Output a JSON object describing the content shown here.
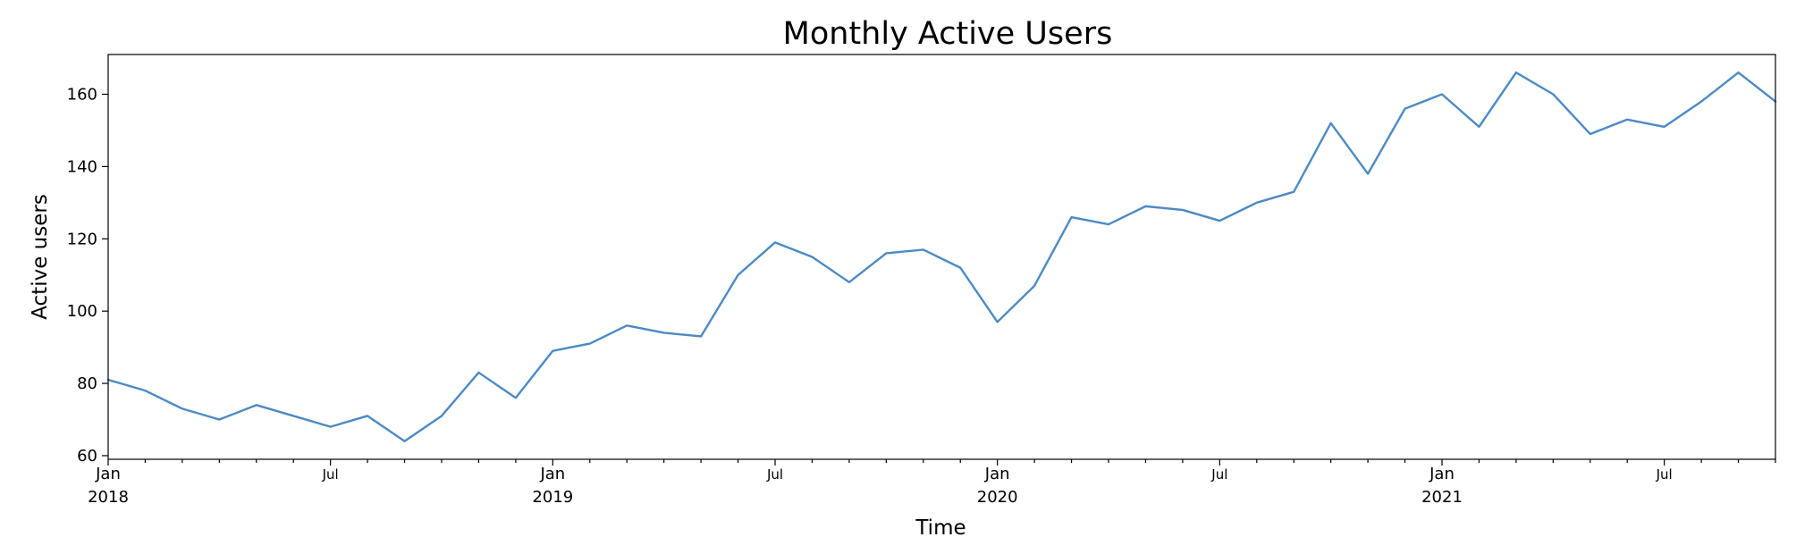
{
  "chart_data": {
    "type": "line",
    "title": "Monthly Active Users",
    "xlabel": "Time",
    "ylabel": "Active users",
    "ylim": [
      59,
      171
    ],
    "grid": false,
    "y_ticks": [
      60,
      80,
      100,
      120,
      140,
      160
    ],
    "x_major_ticks": [
      {
        "date": "2018-01",
        "label": "Jan",
        "year": "2018"
      },
      {
        "date": "2018-07",
        "label": "Jul",
        "year": ""
      },
      {
        "date": "2019-01",
        "label": "Jan",
        "year": "2019"
      },
      {
        "date": "2019-07",
        "label": "Jul",
        "year": ""
      },
      {
        "date": "2020-01",
        "label": "Jan",
        "year": "2020"
      },
      {
        "date": "2020-07",
        "label": "Jul",
        "year": ""
      },
      {
        "date": "2021-01",
        "label": "Jan",
        "year": "2021"
      },
      {
        "date": "2021-07",
        "label": "Jul",
        "year": ""
      }
    ],
    "series": [
      {
        "color": "#4c8ac4",
        "x": [
          "2018-01",
          "2018-02",
          "2018-03",
          "2018-04",
          "2018-05",
          "2018-06",
          "2018-07",
          "2018-08",
          "2018-09",
          "2018-10",
          "2018-11",
          "2018-12",
          "2019-01",
          "2019-02",
          "2019-03",
          "2019-04",
          "2019-05",
          "2019-06",
          "2019-07",
          "2019-08",
          "2019-09",
          "2019-10",
          "2019-11",
          "2019-12",
          "2020-01",
          "2020-02",
          "2020-03",
          "2020-04",
          "2020-05",
          "2020-06",
          "2020-07",
          "2020-08",
          "2020-09",
          "2020-10",
          "2020-11",
          "2020-12",
          "2021-01",
          "2021-02",
          "2021-03",
          "2021-04",
          "2021-05",
          "2021-06",
          "2021-07",
          "2021-08",
          "2021-09",
          "2021-10"
        ],
        "values": [
          81,
          78,
          73,
          70,
          74,
          71,
          68,
          71,
          64,
          71,
          83,
          76,
          89,
          91,
          96,
          94,
          93,
          110,
          119,
          115,
          108,
          116,
          117,
          112,
          97,
          107,
          126,
          124,
          129,
          128,
          125,
          130,
          133,
          152,
          138,
          156,
          160,
          151,
          166,
          160,
          149,
          153,
          151,
          158,
          166,
          158
        ]
      }
    ]
  }
}
